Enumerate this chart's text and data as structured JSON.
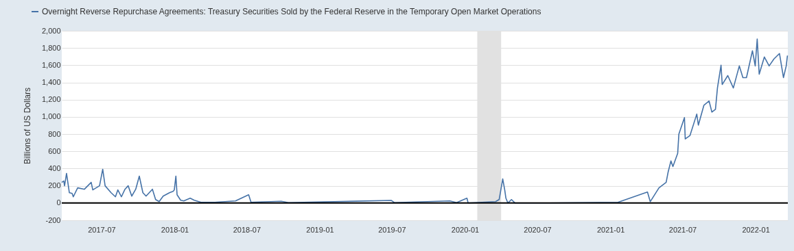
{
  "chart_data": {
    "type": "line",
    "ylabel": "Billions of US Dollars",
    "legend": "top left",
    "grid": "y",
    "xlim": [
      "2017-03-23",
      "2022-03-23"
    ],
    "xticks": [
      {
        "value": "2017-07-01",
        "label": "2017-07"
      },
      {
        "value": "2018-01-01",
        "label": "2018-01"
      },
      {
        "value": "2018-07-01",
        "label": "2018-07"
      },
      {
        "value": "2019-01-01",
        "label": "2019-01"
      },
      {
        "value": "2019-07-01",
        "label": "2019-07"
      },
      {
        "value": "2020-01-01",
        "label": "2020-01"
      },
      {
        "value": "2020-07-01",
        "label": "2020-07"
      },
      {
        "value": "2021-01-01",
        "label": "2021-01"
      },
      {
        "value": "2021-07-01",
        "label": "2021-07"
      },
      {
        "value": "2022-01-01",
        "label": "2022-01"
      }
    ],
    "ylim": [
      -200,
      2000
    ],
    "yticks": [
      -200,
      0,
      200,
      400,
      600,
      800,
      {
        "value": 1000,
        "label": "1,000"
      },
      {
        "value": 1200,
        "label": "1,200"
      },
      {
        "value": 1400,
        "label": "1,400"
      },
      {
        "value": 1600,
        "label": "1,600"
      },
      {
        "value": 1800,
        "label": "1,800"
      },
      {
        "value": 2000,
        "label": "2,000"
      }
    ],
    "ref_lines": [
      {
        "axis": "y",
        "value": 0,
        "color": "#000000"
      }
    ],
    "bands": [
      {
        "axis": "x",
        "from": "2020-02-01",
        "to": "2020-04-01",
        "color": "#e1e1e1"
      }
    ],
    "x": [
      "2017-03-23",
      "2017-03-28",
      "2017-03-30",
      "2017-04-04",
      "2017-04-11",
      "2017-04-18",
      "2017-04-21",
      "2017-05-02",
      "2017-05-19",
      "2017-06-05",
      "2017-06-09",
      "2017-06-26",
      "2017-07-04",
      "2017-07-10",
      "2017-07-25",
      "2017-08-05",
      "2017-08-11",
      "2017-08-20",
      "2017-08-29",
      "2017-09-06",
      "2017-09-15",
      "2017-09-25",
      "2017-10-04",
      "2017-10-13",
      "2017-10-21",
      "2017-11-06",
      "2017-11-14",
      "2017-11-23",
      "2017-12-03",
      "2017-12-19",
      "2017-12-28",
      "2017-12-31",
      "2018-01-04",
      "2018-01-07",
      "2018-01-16",
      "2018-01-24",
      "2018-02-09",
      "2018-02-19",
      "2018-03-08",
      "2018-04-12",
      "2018-06-03",
      "2018-07-06",
      "2018-07-12",
      "2018-09-26",
      "2018-10-14",
      "2019-06-30",
      "2019-07-08",
      "2019-11-24",
      "2019-12-11",
      "2020-01-06",
      "2020-01-09",
      "2020-03-18",
      "2020-03-27",
      "2020-04-05",
      "2020-04-10",
      "2020-04-13",
      "2020-04-18",
      "2020-04-27",
      "2020-05-06",
      "2020-07-31",
      "2021-01-20",
      "2021-04-04",
      "2021-04-11",
      "2021-05-03",
      "2021-05-21",
      "2021-05-26",
      "2021-06-02",
      "2021-06-07",
      "2021-06-19",
      "2021-06-22",
      "2021-07-06",
      "2021-07-08",
      "2021-07-20",
      "2021-08-06",
      "2021-08-10",
      "2021-08-24",
      "2021-09-06",
      "2021-09-13",
      "2021-09-22",
      "2021-09-27",
      "2021-10-06",
      "2021-10-09",
      "2021-10-23",
      "2021-11-06",
      "2021-11-21",
      "2021-11-30",
      "2021-12-09",
      "2021-12-24",
      "2021-12-31",
      "2022-01-05",
      "2022-01-10",
      "2022-01-23",
      "2022-02-04",
      "2022-02-16",
      "2022-03-02",
      "2022-03-12",
      "2022-03-19",
      "2022-03-22"
    ],
    "series": [
      {
        "name": "Overnight Reverse Repurchase Agreements: Treasury Securities Sold by the Federal Reserve in the Temporary Open Market Operations",
        "color": "#4572a7",
        "values": [
          240,
          256,
          200,
          344,
          120,
          112,
          72,
          176,
          160,
          240,
          152,
          200,
          392,
          200,
          120,
          72,
          152,
          72,
          160,
          200,
          80,
          160,
          312,
          120,
          80,
          160,
          40,
          16,
          80,
          120,
          136,
          152,
          312,
          96,
          32,
          24,
          56,
          32,
          8,
          8,
          24,
          96,
          8,
          20,
          4,
          30,
          4,
          24,
          4,
          56,
          0,
          16,
          40,
          280,
          152,
          56,
          0,
          40,
          0,
          0,
          8,
          128,
          16,
          176,
          240,
          360,
          488,
          424,
          576,
          800,
          992,
          744,
          784,
          1032,
          904,
          1136,
          1184,
          1056,
          1088,
          1336,
          1600,
          1376,
          1480,
          1336,
          1592,
          1456,
          1456,
          1768,
          1592,
          1904,
          1496,
          1696,
          1592,
          1672,
          1736,
          1456,
          1592,
          1712
        ]
      }
    ]
  }
}
